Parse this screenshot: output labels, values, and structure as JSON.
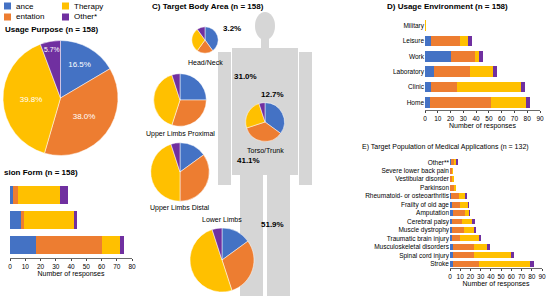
{
  "chart_data": [
    {
      "type": "pie",
      "title": "Usage Purpose (n = 158)",
      "categories": [
        "ance",
        "entation",
        "Therapy",
        "Other*"
      ],
      "values": [
        16.5,
        38.0,
        39.8,
        5.7
      ],
      "value_labels": [
        "16.5%",
        "38.0%",
        "39.8%",
        "5.7%"
      ],
      "colors": [
        "#4472c4",
        "#ed7d31",
        "#ffc000",
        "#7030a0"
      ],
      "legend": "top left",
      "data_labels": true
    },
    {
      "type": "bar",
      "title": "sion Form (n = 158)",
      "orientation": "horizontal",
      "stacked": true,
      "categories": [
        null,
        null,
        null
      ],
      "series": [
        {
          "name": "ance",
          "color": "#4472c4",
          "values": [
            2,
            7,
            17
          ]
        },
        {
          "name": "entation",
          "color": "#ed7d31",
          "values": [
            3,
            2,
            43
          ]
        },
        {
          "name": "Therapy",
          "color": "#ffc000",
          "values": [
            28,
            33,
            12
          ]
        },
        {
          "name": "Other*",
          "color": "#7030a0",
          "values": [
            5,
            2,
            3
          ]
        }
      ],
      "xlabel": "Number of responses",
      "xlim": [
        0,
        80
      ],
      "xticks": [
        0,
        10,
        20,
        30,
        40,
        50,
        60,
        70,
        80
      ],
      "grid": false,
      "tick_labels": "x"
    },
    {
      "type": "pie",
      "title": "C) Target Body Area (n = 158)",
      "colors": [
        "#4472c4",
        "#ed7d31",
        "#ffc000",
        "#7030a0"
      ],
      "areas": [
        {
          "name": "Head/Neck",
          "percent": 3.2,
          "label": "3.2%",
          "values": [
            40,
            20,
            30,
            10
          ]
        },
        {
          "name": "Upper Limbs Proximal",
          "percent": 31.0,
          "label": "31.0%",
          "values": [
            25,
            30,
            40,
            5
          ]
        },
        {
          "name": "Upper Limbs Distal",
          "percent": 41.1,
          "label": "41.1%",
          "values": [
            15,
            35,
            45,
            5
          ]
        },
        {
          "name": "Torso/Trunk",
          "percent": 12.7,
          "label": "12.7%",
          "values": [
            35,
            35,
            25,
            5
          ]
        },
        {
          "name": "Lower Limbs",
          "percent": 51.9,
          "label": "51.9%",
          "values": [
            15,
            30,
            50,
            5
          ]
        }
      ]
    },
    {
      "type": "bar",
      "title": "D) Usage Environment (n = 158)",
      "orientation": "horizontal",
      "stacked": true,
      "categories": [
        "Military",
        "Leisure",
        "Work",
        "Laboratory",
        "Clinic",
        "Home"
      ],
      "series": [
        {
          "name": "ance",
          "color": "#4472c4",
          "values": [
            0,
            5,
            20,
            7,
            5,
            4
          ]
        },
        {
          "name": "entation",
          "color": "#ed7d31",
          "values": [
            0,
            22,
            19,
            28,
            20,
            48
          ]
        },
        {
          "name": "Therapy",
          "color": "#ffc000",
          "values": [
            1,
            7,
            3,
            18,
            50,
            27
          ]
        },
        {
          "name": "Other*",
          "color": "#7030a0",
          "values": [
            0,
            3,
            3,
            3,
            3,
            3
          ]
        }
      ],
      "xlabel": "Number of responses",
      "xlim": [
        0,
        90
      ],
      "xticks": [
        0,
        10,
        20,
        30,
        40,
        50,
        60,
        70,
        80,
        90
      ],
      "grid": false
    },
    {
      "type": "bar",
      "title": "E) Target Population of Medical Applications (n = 132)",
      "orientation": "horizontal",
      "stacked": true,
      "categories": [
        "Other**",
        "Severe lower back pain",
        "Vestibular disorder",
        "Parkinson",
        "Rheumatoid- or osteoarthritis",
        "Frailty of old age",
        "Amputation",
        "Cerebral palsy",
        "Muscle dystrophy",
        "Traumatic brain injury",
        "Musculoskeletal disorders",
        "Spinal cord injury",
        "Stroke"
      ],
      "series": [
        {
          "name": "ance",
          "color": "#4472c4",
          "values": [
            1,
            0,
            0,
            0,
            1,
            2,
            3,
            2,
            2,
            2,
            3,
            3,
            3
          ]
        },
        {
          "name": "entation",
          "color": "#ed7d31",
          "values": [
            3,
            2,
            2,
            4,
            8,
            8,
            12,
            10,
            12,
            8,
            20,
            20,
            25
          ]
        },
        {
          "name": "Therapy",
          "color": "#ffc000",
          "values": [
            2,
            1,
            2,
            2,
            6,
            8,
            4,
            10,
            9,
            18,
            13,
            37,
            50
          ]
        },
        {
          "name": "Other*",
          "color": "#7030a0",
          "values": [
            2,
            0,
            0,
            0,
            2,
            1,
            1,
            2,
            2,
            2,
            3,
            3,
            4
          ]
        }
      ],
      "xlabel": "Number of responses",
      "xlim": [
        0,
        90
      ],
      "xticks": [
        0,
        10,
        20,
        30,
        40,
        50,
        60,
        70,
        80,
        90
      ],
      "grid": false
    }
  ]
}
